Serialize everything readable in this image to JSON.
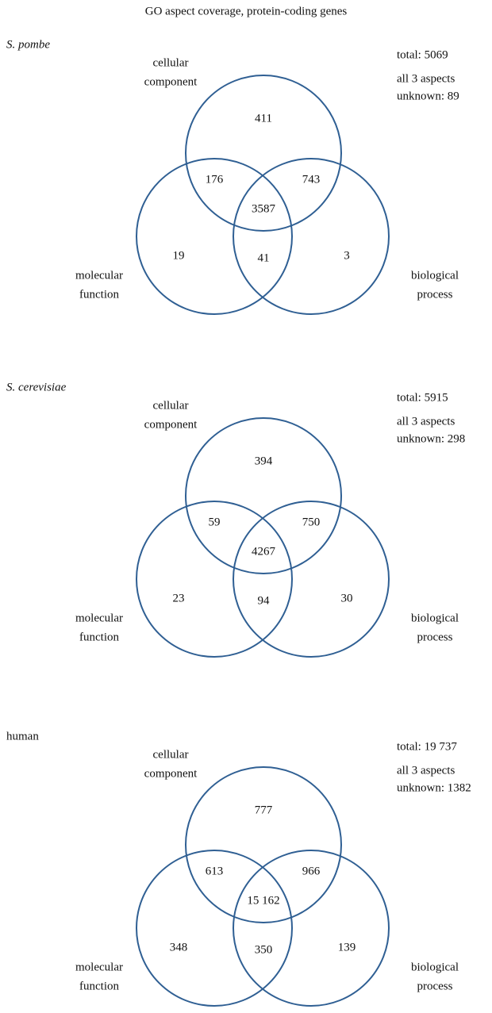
{
  "title": "GO aspect coverage, protein-coding genes",
  "panels": [
    {
      "organism": "S. pombe",
      "total": "total: 5069",
      "unknown": [
        "all 3 aspects",
        "unknown: 89"
      ],
      "sets": {
        "cc": [
          "cellular",
          "component"
        ],
        "mf": [
          "molecular",
          "function"
        ],
        "bp": [
          "biological",
          "process"
        ]
      },
      "regions": {
        "cc": "411",
        "cc_mf": "176",
        "cc_bp": "743",
        "all": "3587",
        "mf": "19",
        "mf_bp": "41",
        "bp": "3"
      }
    },
    {
      "organism": "S. cerevisiae",
      "total": "total: 5915",
      "unknown": [
        "all 3 aspects",
        "unknown: 298"
      ],
      "sets": {
        "cc": [
          "cellular",
          "component"
        ],
        "mf": [
          "molecular",
          "function"
        ],
        "bp": [
          "biological",
          "process"
        ]
      },
      "regions": {
        "cc": "394",
        "cc_mf": "59",
        "cc_bp": "750",
        "all": "4267",
        "mf": "23",
        "mf_bp": "94",
        "bp": "30"
      }
    },
    {
      "organism": "human",
      "total": "total: 19 737",
      "unknown": [
        "all 3 aspects",
        "unknown: 1382"
      ],
      "sets": {
        "cc": [
          "cellular",
          "component"
        ],
        "mf": [
          "molecular",
          "function"
        ],
        "bp": [
          "biological",
          "process"
        ]
      },
      "regions": {
        "cc": "777",
        "cc_mf": "613",
        "cc_bp": "966",
        "all": "15 162",
        "mf": "348",
        "mf_bp": "350",
        "bp": "139"
      }
    }
  ]
}
